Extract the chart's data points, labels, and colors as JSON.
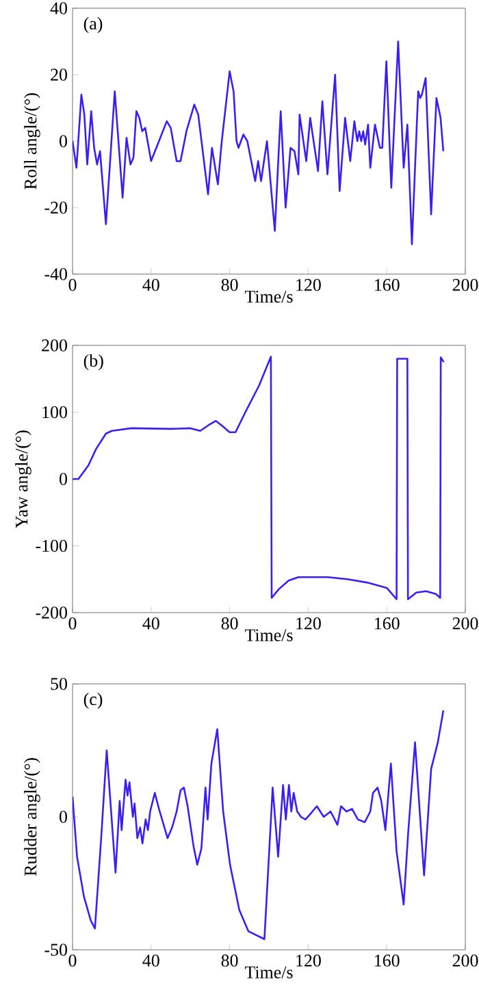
{
  "chart_data": [
    {
      "type": "line",
      "xlabel": "Time/s",
      "ylabel": "Roll angle/(°)",
      "annotations": [
        "(a)"
      ],
      "xlim": [
        0,
        200
      ],
      "ylim": [
        -40,
        40
      ],
      "xticks": [
        0,
        40,
        80,
        120,
        160,
        200
      ],
      "yticks": [
        -40,
        -20,
        0,
        20,
        40
      ],
      "color": "#3a1ef2",
      "x": [
        0,
        2,
        4.5,
        6,
        7.5,
        9.5,
        11,
        12.5,
        14,
        17,
        21.5,
        25.5,
        27.5,
        29.5,
        31,
        32.5,
        34,
        35.5,
        37,
        40,
        44,
        48,
        50,
        53,
        55,
        58,
        62,
        64,
        69,
        71,
        74,
        76,
        80,
        82,
        83.5,
        84.5,
        87,
        89,
        91,
        93,
        94.5,
        96,
        97,
        99,
        103,
        106,
        108.5,
        111,
        113,
        115,
        115.6,
        119,
        121,
        125,
        127.2,
        129.8,
        133.7,
        136,
        138.8,
        141.4,
        143.5,
        145,
        146,
        147,
        148,
        149,
        150.5,
        151.6,
        154,
        156.5,
        157.7,
        159.8,
        162.3,
        165.8,
        168.6,
        170.5,
        172.8,
        176,
        177,
        177.9,
        179.8,
        182.6,
        185.3,
        187.4,
        188.8
      ],
      "values": [
        0,
        -8,
        14,
        8,
        -7,
        9,
        -2,
        -7,
        -3,
        -25,
        15,
        -17,
        1,
        -7,
        -5,
        9,
        7,
        3,
        4,
        -6,
        0,
        6,
        4,
        -6,
        -6,
        3,
        11,
        8,
        -16,
        -2,
        -13,
        0,
        21,
        15,
        0,
        -2,
        2,
        0,
        -6,
        -12,
        -6,
        -12,
        -8,
        0,
        -27,
        9,
        -20,
        -2,
        -3,
        -10,
        8,
        -6,
        7,
        -9,
        12,
        -10,
        20,
        -15,
        7,
        -6,
        6,
        0,
        3,
        0,
        3,
        -1,
        5,
        -8,
        5,
        -2,
        -2,
        24,
        -14,
        30,
        -8,
        5,
        -31,
        15,
        13,
        14,
        19,
        -22,
        13,
        7,
        -3
      ]
    },
    {
      "type": "line",
      "xlabel": "Time/s",
      "ylabel": "Yaw angle/(°)",
      "annotations": [
        "(b)"
      ],
      "xlim": [
        0,
        200
      ],
      "ylim": [
        -200,
        200
      ],
      "xticks": [
        0,
        40,
        80,
        120,
        160,
        200
      ],
      "yticks": [
        -200,
        -100,
        0,
        100,
        200
      ],
      "color": "#3a1ef2",
      "x": [
        0,
        3,
        8,
        12,
        17,
        20,
        30,
        50,
        60,
        65,
        70,
        73,
        76,
        80,
        83,
        88,
        95,
        101,
        101.4,
        105,
        110,
        115,
        130,
        140,
        150,
        160,
        165,
        165.3,
        170.5,
        170.8,
        175,
        180,
        185,
        187.2,
        187.5,
        189
      ],
      "values": [
        0,
        0,
        20,
        45,
        68,
        72,
        76,
        75,
        76,
        72,
        82,
        87,
        80,
        70,
        70,
        100,
        140,
        183,
        -178,
        -165,
        -152,
        -147,
        -147,
        -150,
        -155,
        -163,
        -180,
        180,
        180,
        -180,
        -170,
        -168,
        -172,
        -178,
        182,
        175
      ]
    },
    {
      "type": "line",
      "xlabel": "Time/s",
      "ylabel": "Rudder angle/(°)",
      "annotations": [
        "(c)"
      ],
      "xlim": [
        0,
        200
      ],
      "ylim": [
        -50,
        50
      ],
      "xticks": [
        0,
        40,
        80,
        120,
        160,
        200
      ],
      "yticks": [
        -50,
        0,
        50
      ],
      "color": "#3a1ef2",
      "x": [
        0,
        2.3,
        5.8,
        9.3,
        11.4,
        14.4,
        17.4,
        21.9,
        24,
        25,
        27,
        28,
        29,
        30.7,
        31.6,
        33,
        34.4,
        35.6,
        37.2,
        38.4,
        39.5,
        41.9,
        44,
        48.4,
        50.7,
        53,
        55,
        56.7,
        58.6,
        61.6,
        63.5,
        65.6,
        67.7,
        68.8,
        70.7,
        73.7,
        76.7,
        80.2,
        84.9,
        89.5,
        97.7,
        101.9,
        104.7,
        107.2,
        108.6,
        110.2,
        111.4,
        112.6,
        114.4,
        116.3,
        118.6,
        121,
        124.4,
        127.9,
        131.4,
        134.9,
        136.7,
        139.5,
        142.3,
        145.3,
        148.8,
        151.6,
        153,
        155.3,
        157.2,
        159.3,
        162.1,
        165,
        168.6,
        170.9,
        174.4,
        179,
        182.6,
        186,
        188.8
      ],
      "values": [
        7.6,
        -15,
        -30,
        -39,
        -42,
        -10,
        25,
        -21,
        6,
        -5,
        14,
        8,
        13,
        0,
        5,
        -8,
        -4,
        -10,
        -1,
        -5,
        2,
        9,
        3,
        -8,
        -4,
        2,
        10,
        11,
        4,
        -11,
        -18,
        -12,
        11,
        -1,
        20,
        33,
        2,
        -18,
        -35,
        -43,
        -46,
        11,
        -15,
        12,
        -1,
        12,
        2,
        9,
        2,
        0,
        -1,
        1,
        4,
        0,
        2,
        -3,
        4,
        2,
        3,
        -1,
        -2,
        2,
        9,
        11,
        6,
        -5,
        20,
        -13,
        -33,
        -6,
        28,
        -22,
        18,
        28,
        40
      ]
    }
  ]
}
